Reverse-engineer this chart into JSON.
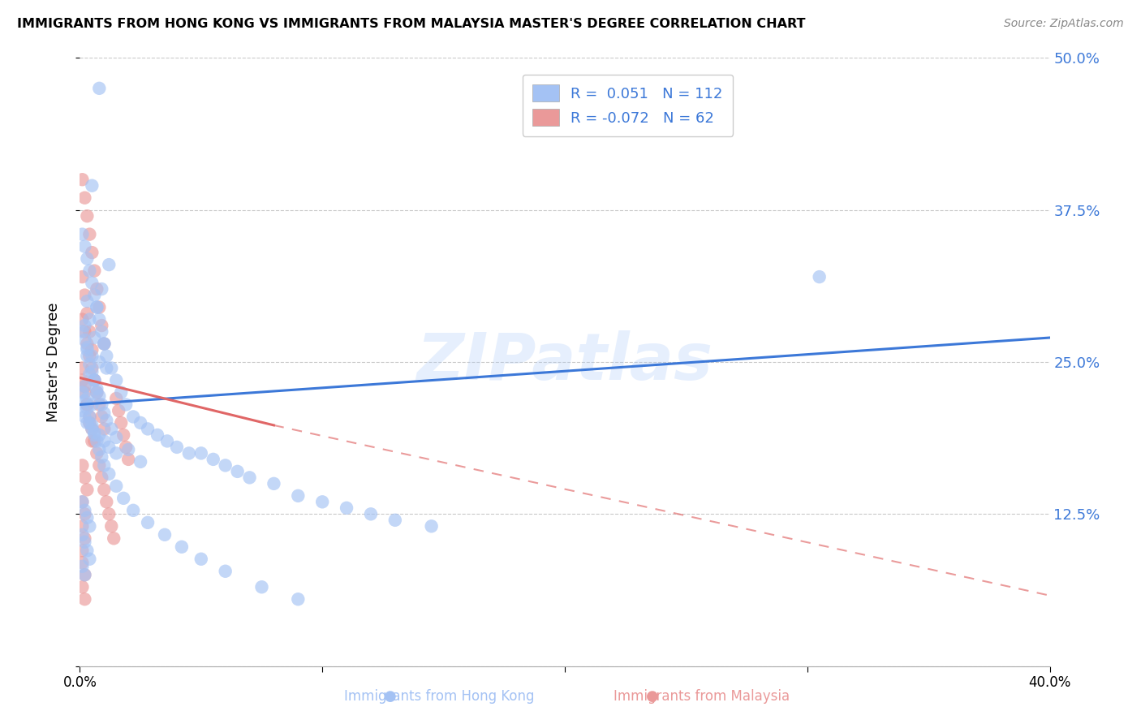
{
  "title": "IMMIGRANTS FROM HONG KONG VS IMMIGRANTS FROM MALAYSIA MASTER'S DEGREE CORRELATION CHART",
  "source": "Source: ZipAtlas.com",
  "ylabel": "Master's Degree",
  "label_hk": "Immigrants from Hong Kong",
  "label_my": "Immigrants from Malaysia",
  "xmin": 0.0,
  "xmax": 0.4,
  "ymin": 0.0,
  "ymax": 0.5,
  "yticks": [
    0.0,
    0.125,
    0.25,
    0.375,
    0.5
  ],
  "ytick_labels": [
    "",
    "12.5%",
    "25.0%",
    "37.5%",
    "50.0%"
  ],
  "xticks": [
    0.0,
    0.1,
    0.2,
    0.3,
    0.4
  ],
  "xtick_labels": [
    "0.0%",
    "",
    "",
    "",
    "40.0%"
  ],
  "blue_R": 0.051,
  "blue_N": 112,
  "pink_R": -0.072,
  "pink_N": 62,
  "blue_color": "#a4c2f4",
  "pink_color": "#ea9999",
  "blue_line_color": "#3c78d8",
  "pink_line_color": "#e06666",
  "blue_line_y0": 0.215,
  "blue_line_y1": 0.27,
  "pink_line_y0": 0.237,
  "pink_line_solid_x1": 0.08,
  "pink_line_solid_y1": 0.198,
  "pink_line_dashed_x1": 0.4,
  "pink_line_dashed_y1": 0.058,
  "watermark": "ZIPatlas",
  "legend_text_color": "#3c78d8",
  "blue_x": [
    0.008,
    0.005,
    0.012,
    0.009,
    0.003,
    0.007,
    0.004,
    0.002,
    0.006,
    0.01,
    0.003,
    0.005,
    0.008,
    0.011,
    0.004,
    0.006,
    0.002,
    0.007,
    0.003,
    0.005,
    0.001,
    0.002,
    0.003,
    0.004,
    0.005,
    0.006,
    0.008,
    0.01,
    0.012,
    0.015,
    0.001,
    0.002,
    0.003,
    0.004,
    0.005,
    0.006,
    0.007,
    0.008,
    0.009,
    0.01,
    0.011,
    0.013,
    0.015,
    0.017,
    0.019,
    0.022,
    0.025,
    0.028,
    0.032,
    0.036,
    0.04,
    0.045,
    0.05,
    0.055,
    0.06,
    0.065,
    0.07,
    0.08,
    0.09,
    0.1,
    0.11,
    0.12,
    0.13,
    0.145,
    0.001,
    0.002,
    0.003,
    0.003,
    0.004,
    0.005,
    0.006,
    0.007,
    0.008,
    0.009,
    0.01,
    0.011,
    0.013,
    0.015,
    0.02,
    0.025,
    0.001,
    0.002,
    0.003,
    0.004,
    0.001,
    0.002,
    0.003,
    0.004,
    0.001,
    0.002,
    0.001,
    0.002,
    0.003,
    0.004,
    0.005,
    0.006,
    0.007,
    0.008,
    0.009,
    0.01,
    0.012,
    0.015,
    0.018,
    0.022,
    0.028,
    0.035,
    0.042,
    0.05,
    0.06,
    0.075,
    0.09,
    0.305
  ],
  "blue_y": [
    0.475,
    0.395,
    0.33,
    0.31,
    0.3,
    0.295,
    0.285,
    0.28,
    0.27,
    0.265,
    0.26,
    0.255,
    0.25,
    0.245,
    0.24,
    0.235,
    0.23,
    0.225,
    0.22,
    0.215,
    0.21,
    0.205,
    0.2,
    0.2,
    0.195,
    0.19,
    0.19,
    0.185,
    0.18,
    0.175,
    0.355,
    0.345,
    0.335,
    0.325,
    0.315,
    0.305,
    0.295,
    0.285,
    0.275,
    0.265,
    0.255,
    0.245,
    0.235,
    0.225,
    0.215,
    0.205,
    0.2,
    0.195,
    0.19,
    0.185,
    0.18,
    0.175,
    0.175,
    0.17,
    0.165,
    0.16,
    0.155,
    0.15,
    0.14,
    0.135,
    0.13,
    0.125,
    0.12,
    0.115,
    0.275,
    0.268,
    0.262,
    0.255,
    0.248,
    0.242,
    0.235,
    0.228,
    0.222,
    0.215,
    0.208,
    0.202,
    0.195,
    0.188,
    0.178,
    0.168,
    0.135,
    0.128,
    0.122,
    0.115,
    0.108,
    0.102,
    0.095,
    0.088,
    0.082,
    0.075,
    0.225,
    0.218,
    0.212,
    0.205,
    0.198,
    0.192,
    0.185,
    0.178,
    0.172,
    0.165,
    0.158,
    0.148,
    0.138,
    0.128,
    0.118,
    0.108,
    0.098,
    0.088,
    0.078,
    0.065,
    0.055,
    0.32
  ],
  "pink_x": [
    0.001,
    0.002,
    0.003,
    0.004,
    0.005,
    0.006,
    0.007,
    0.008,
    0.009,
    0.01,
    0.001,
    0.002,
    0.003,
    0.004,
    0.005,
    0.006,
    0.007,
    0.008,
    0.009,
    0.01,
    0.011,
    0.012,
    0.013,
    0.014,
    0.015,
    0.016,
    0.017,
    0.018,
    0.019,
    0.02,
    0.001,
    0.002,
    0.003,
    0.004,
    0.005,
    0.006,
    0.007,
    0.008,
    0.009,
    0.01,
    0.001,
    0.002,
    0.003,
    0.004,
    0.005,
    0.001,
    0.002,
    0.003,
    0.004,
    0.005,
    0.001,
    0.002,
    0.003,
    0.001,
    0.002,
    0.001,
    0.002,
    0.001,
    0.001,
    0.002,
    0.001,
    0.002
  ],
  "pink_y": [
    0.285,
    0.275,
    0.265,
    0.255,
    0.245,
    0.235,
    0.225,
    0.215,
    0.205,
    0.195,
    0.235,
    0.225,
    0.215,
    0.205,
    0.195,
    0.185,
    0.175,
    0.165,
    0.155,
    0.145,
    0.135,
    0.125,
    0.115,
    0.105,
    0.22,
    0.21,
    0.2,
    0.19,
    0.18,
    0.17,
    0.4,
    0.385,
    0.37,
    0.355,
    0.34,
    0.325,
    0.31,
    0.295,
    0.28,
    0.265,
    0.32,
    0.305,
    0.29,
    0.275,
    0.26,
    0.245,
    0.23,
    0.215,
    0.2,
    0.185,
    0.165,
    0.155,
    0.145,
    0.135,
    0.125,
    0.115,
    0.105,
    0.095,
    0.085,
    0.075,
    0.065,
    0.055
  ]
}
